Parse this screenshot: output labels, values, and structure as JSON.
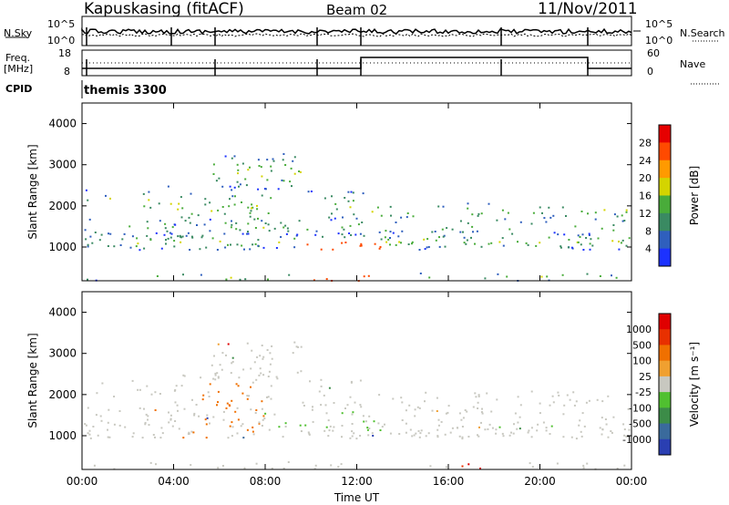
{
  "header": {
    "station": "Kapuskasing (fitACF)",
    "beam": "Beam 02",
    "date": "11/Nov/2011"
  },
  "strip": {
    "nsky_label": "N.Sky",
    "nsky_ticks": [
      "10^5",
      "10^0"
    ],
    "nsearch_label": "N.Search",
    "nsearch_ticks": [
      "10^5",
      "10^0"
    ],
    "freq_label": "Freq.",
    "freq_unit": "[MHz]",
    "freq_ticks": [
      "18",
      "8"
    ],
    "nave_label": "Nave",
    "nave_ticks": [
      "60",
      "0"
    ],
    "cpid_label": "CPID",
    "cpid_value": "themis 3300"
  },
  "chart_data": [
    {
      "type": "heatmap",
      "name": "power",
      "ylabel": "Slant Range [km]",
      "xlabel": "Time UT",
      "x_ticks": [
        "00:00",
        "04:00",
        "08:00",
        "12:00",
        "16:00",
        "20:00",
        "00:00"
      ],
      "y_ticks": [
        1000,
        2000,
        3000,
        4000
      ],
      "ylim": [
        180,
        4500
      ],
      "colorbar_label": "Power [dB]",
      "colorbar_ticks": [
        4,
        8,
        12,
        16,
        20,
        24,
        28
      ],
      "colors": [
        "#1c32ff",
        "#2f5fbd",
        "#3a8a62",
        "#49ac3a",
        "#d4d400",
        "#ff9a00",
        "#ff4a00",
        "#e60000"
      ]
    },
    {
      "type": "heatmap",
      "name": "velocity",
      "ylabel": "Slant Range [km]",
      "xlabel": "Time UT",
      "x_ticks": [
        "00:00",
        "04:00",
        "08:00",
        "12:00",
        "16:00",
        "20:00",
        "00:00"
      ],
      "y_ticks": [
        1000,
        2000,
        3000,
        4000
      ],
      "ylim": [
        180,
        4500
      ],
      "colorbar_label": "Velocity [m s⁻¹]",
      "colorbar_ticks": [
        1000,
        500,
        100,
        25,
        -25,
        -100,
        -500,
        -1000
      ],
      "colors": [
        "#2a3fb2",
        "#3a6a9c",
        "#3c8c48",
        "#50c030",
        "#c8c8c0",
        "#f0a030",
        "#f07000",
        "#e83000",
        "#e00000"
      ]
    }
  ]
}
